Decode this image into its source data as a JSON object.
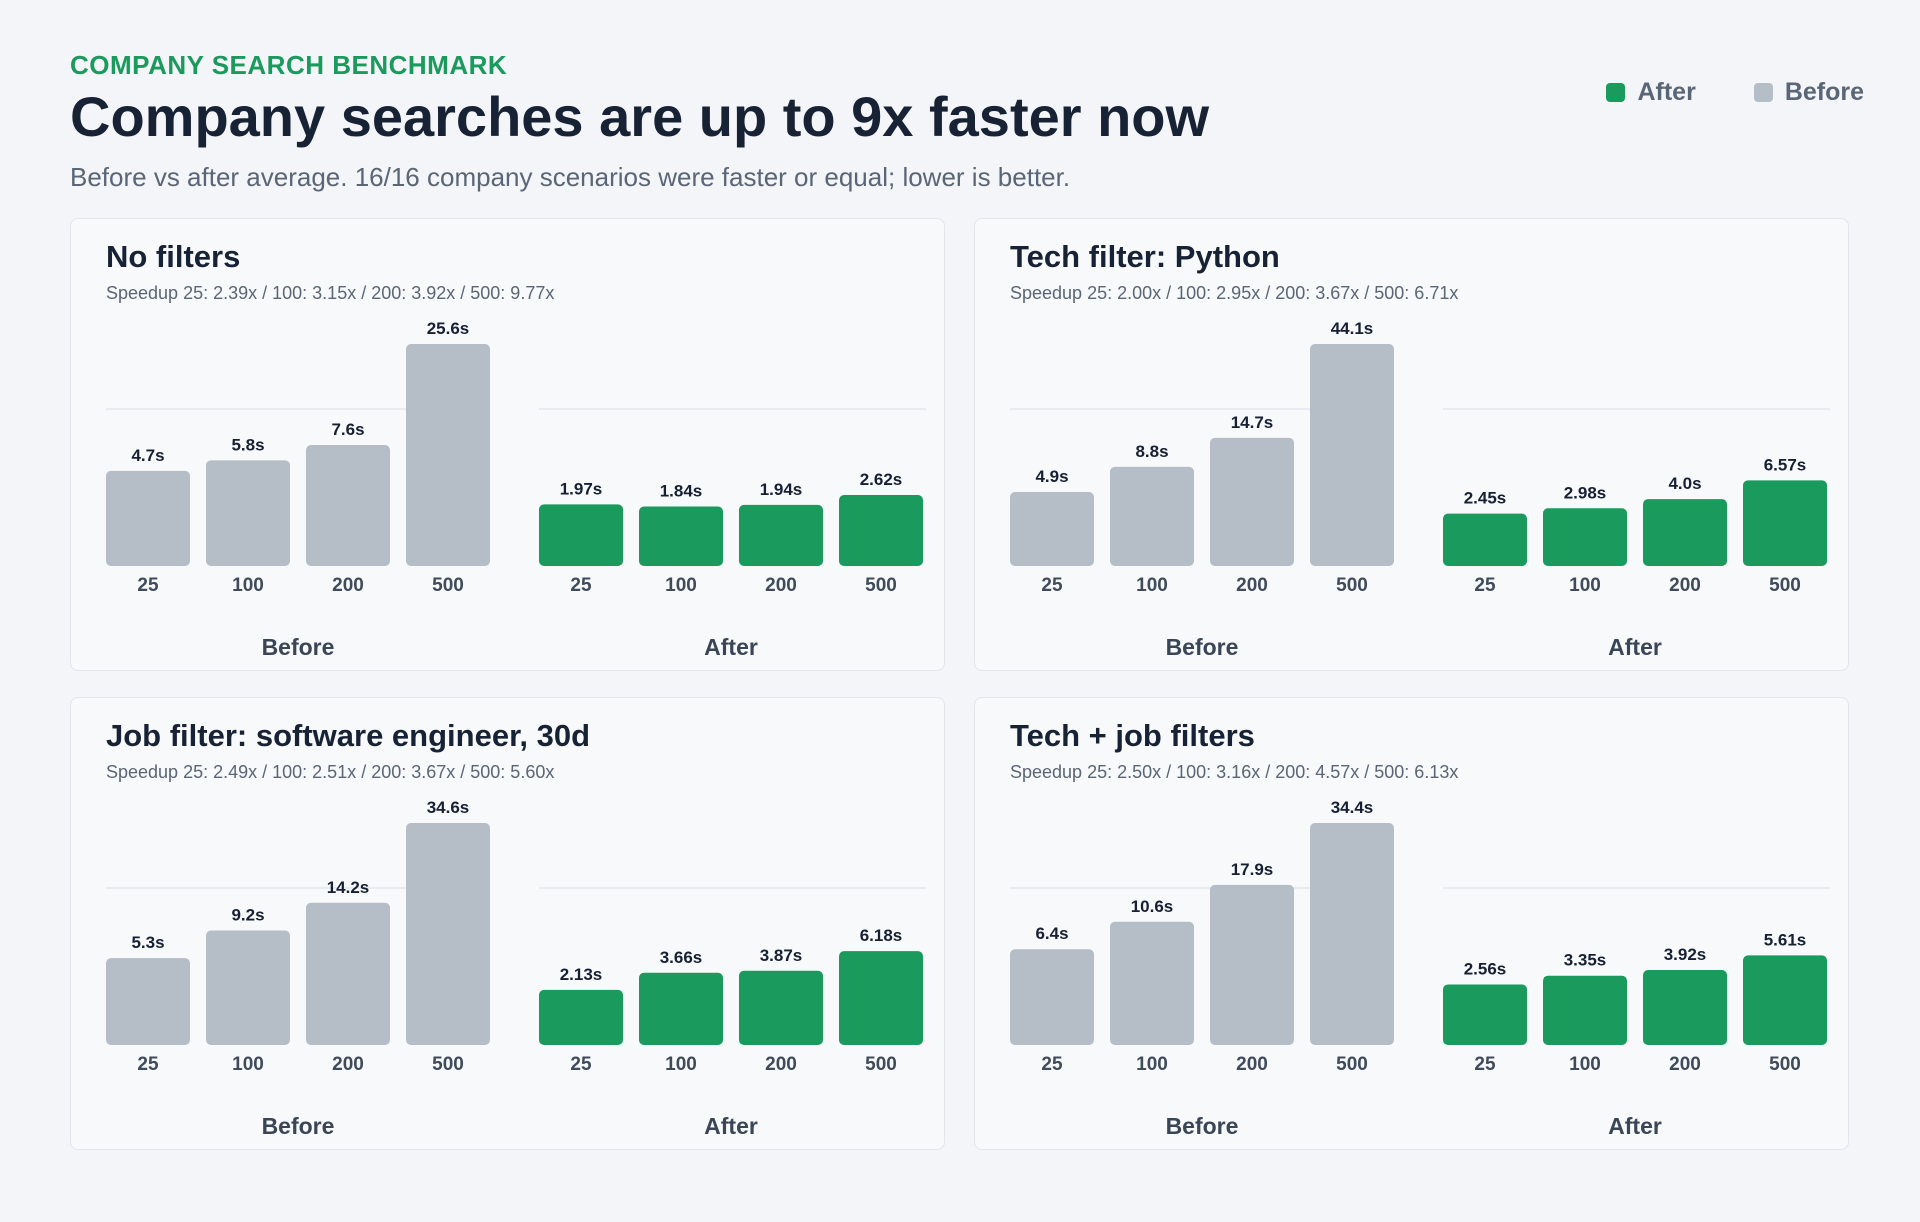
{
  "header": {
    "eyebrow": "COMPANY SEARCH BENCHMARK",
    "title": "Company searches are up to 9x faster now",
    "subtitle": "Before vs after average. 16/16 company scenarios were faster or equal; lower is better."
  },
  "legend": {
    "after_label": "After",
    "before_label": "Before",
    "after_color": "#1a9a5c",
    "before_color": "#b5bdc7"
  },
  "chart_data": [
    {
      "type": "bar",
      "title": "No filters",
      "subtitle": "Speedup 25: 2.39x / 100: 3.15x / 200: 3.92x / 500: 9.77x",
      "categories": [
        "25",
        "100",
        "200",
        "500"
      ],
      "groups": [
        "Before",
        "After"
      ],
      "series": [
        {
          "name": "Before",
          "values": [
            4.7,
            5.8,
            7.6,
            25.6
          ],
          "labels": [
            "4.7s",
            "5.8s",
            "7.6s",
            "25.6s"
          ]
        },
        {
          "name": "After",
          "values": [
            1.97,
            1.84,
            1.94,
            2.62
          ],
          "labels": [
            "1.97s",
            "1.84s",
            "1.94s",
            "2.62s"
          ]
        }
      ],
      "scale": "sqrt",
      "gridline": 12.8
    },
    {
      "type": "bar",
      "title": "Tech filter: Python",
      "subtitle": "Speedup 25: 2.00x / 100: 2.95x / 200: 3.67x / 500: 6.71x",
      "categories": [
        "25",
        "100",
        "200",
        "500"
      ],
      "groups": [
        "Before",
        "After"
      ],
      "series": [
        {
          "name": "Before",
          "values": [
            4.9,
            8.8,
            14.7,
            44.1
          ],
          "labels": [
            "4.9s",
            "8.8s",
            "14.7s",
            "44.1s"
          ]
        },
        {
          "name": "After",
          "values": [
            2.45,
            2.98,
            4.0,
            6.57
          ],
          "labels": [
            "2.45s",
            "2.98s",
            "4.0s",
            "6.57s"
          ]
        }
      ],
      "scale": "sqrt",
      "gridline": 22.05
    },
    {
      "type": "bar",
      "title": "Job filter: software engineer, 30d",
      "subtitle": "Speedup 25: 2.49x / 100: 2.51x / 200: 3.67x / 500: 5.60x",
      "categories": [
        "25",
        "100",
        "200",
        "500"
      ],
      "groups": [
        "Before",
        "After"
      ],
      "series": [
        {
          "name": "Before",
          "values": [
            5.3,
            9.2,
            14.2,
            34.6
          ],
          "labels": [
            "5.3s",
            "9.2s",
            "14.2s",
            "34.6s"
          ]
        },
        {
          "name": "After",
          "values": [
            2.13,
            3.66,
            3.87,
            6.18
          ],
          "labels": [
            "2.13s",
            "3.66s",
            "3.87s",
            "6.18s"
          ]
        }
      ],
      "scale": "sqrt",
      "gridline": 17.3
    },
    {
      "type": "bar",
      "title": "Tech + job filters",
      "subtitle": "Speedup 25: 2.50x / 100: 3.16x / 200: 4.57x / 500: 6.13x",
      "categories": [
        "25",
        "100",
        "200",
        "500"
      ],
      "groups": [
        "Before",
        "After"
      ],
      "series": [
        {
          "name": "Before",
          "values": [
            6.4,
            10.6,
            17.9,
            34.4
          ],
          "labels": [
            "6.4s",
            "10.6s",
            "17.9s",
            "34.4s"
          ]
        },
        {
          "name": "After",
          "values": [
            2.56,
            3.35,
            3.92,
            5.61
          ],
          "labels": [
            "2.56s",
            "3.35s",
            "3.92s",
            "5.61s"
          ]
        }
      ],
      "scale": "sqrt",
      "gridline": 17.2
    }
  ]
}
